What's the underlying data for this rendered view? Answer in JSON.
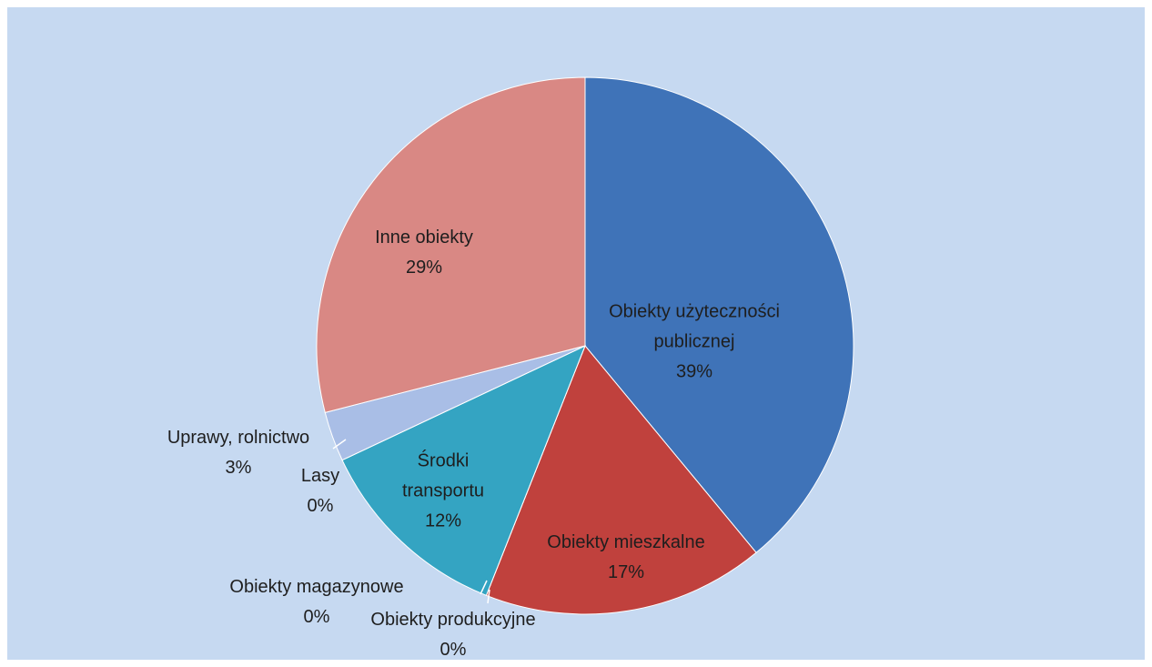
{
  "chart_data": {
    "type": "pie",
    "categories": [
      "Obiekty użyteczności publicznej",
      "Obiekty mieszkalne",
      "Obiekty produkcyjne",
      "Obiekty magazynowe",
      "Środki transportu",
      "Lasy",
      "Uprawy, rolnictwo",
      "Inne obiekty"
    ],
    "values": [
      39,
      17,
      0,
      0,
      12,
      0,
      3,
      29
    ],
    "value_labels": [
      "39%",
      "17%",
      "0%",
      "0%",
      "12%",
      "0%",
      "3%",
      "29%"
    ],
    "colors": [
      "#3f73b8",
      "#c0413d",
      "#8fb34a",
      "#7a5b9e",
      "#34a4c2",
      "#e88a3a",
      "#a9bee6",
      "#d98884"
    ]
  }
}
